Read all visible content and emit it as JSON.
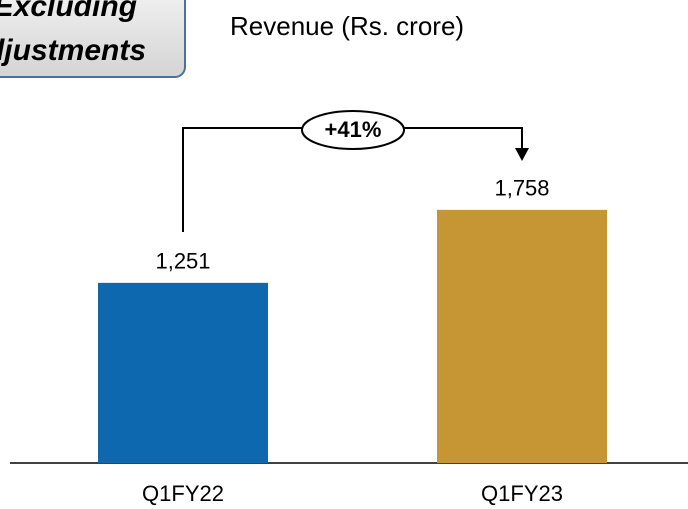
{
  "chart_data": {
    "type": "bar",
    "title": "Revenue (Rs. crore)",
    "badge": [
      "Excluding",
      "Adjustments"
    ],
    "categories": [
      "Q1FY22",
      "Q1FY23"
    ],
    "values": [
      1251,
      1758
    ],
    "value_labels": [
      "1,251",
      "1,758"
    ],
    "colors": [
      "#0e68b0",
      "#c79634"
    ],
    "annotation": "+41%",
    "ylim": [
      0,
      2000
    ]
  }
}
